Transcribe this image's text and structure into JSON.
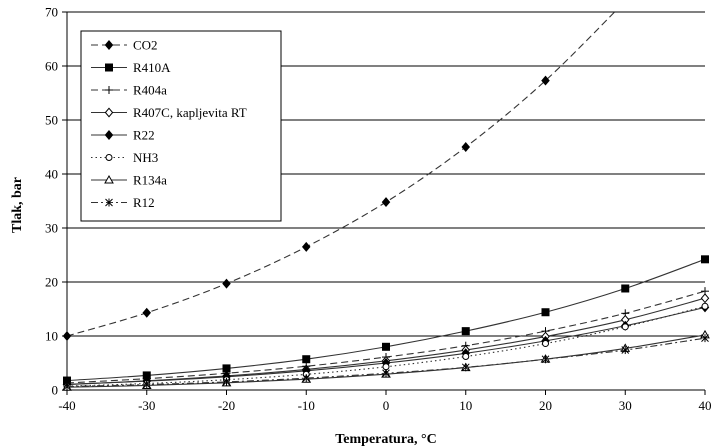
{
  "chart_data": {
    "type": "line",
    "xlabel": "Temperatura, °C",
    "ylabel": "Tlak, bar",
    "xlim": [
      -40,
      40
    ],
    "ylim": [
      0,
      70
    ],
    "x_ticks": [
      -40,
      -30,
      -20,
      -10,
      0,
      10,
      20,
      30,
      40
    ],
    "y_ticks": [
      0,
      10,
      20,
      30,
      40,
      50,
      60,
      70
    ],
    "grid": "horizontal",
    "legend_position": "top-left",
    "series": [
      {
        "name": "CO2",
        "style": "dashed",
        "marker": "diamond-filled",
        "x": [
          -40,
          -30,
          -20,
          -10,
          0,
          10,
          20,
          30
        ],
        "y": [
          10.0,
          14.3,
          19.7,
          26.5,
          34.8,
          45.0,
          57.3,
          72.0
        ]
      },
      {
        "name": "R410A",
        "style": "solid",
        "marker": "square-filled",
        "x": [
          -40,
          -30,
          -20,
          -10,
          0,
          10,
          20,
          30,
          40
        ],
        "y": [
          1.75,
          2.7,
          4.0,
          5.7,
          8.0,
          10.9,
          14.4,
          18.8,
          24.2
        ]
      },
      {
        "name": "R404a",
        "style": "dashed",
        "marker": "plus",
        "x": [
          -40,
          -30,
          -20,
          -10,
          0,
          10,
          20,
          30,
          40
        ],
        "y": [
          1.3,
          2.1,
          3.1,
          4.4,
          6.1,
          8.2,
          10.9,
          14.2,
          18.3
        ]
      },
      {
        "name": "R407C, kapljevita RT",
        "style": "solid",
        "marker": "diamond-open",
        "x": [
          -40,
          -30,
          -20,
          -10,
          0,
          10,
          20,
          30,
          40
        ],
        "y": [
          1.0,
          1.7,
          2.6,
          3.8,
          5.4,
          7.4,
          9.9,
          13.0,
          17.0
        ]
      },
      {
        "name": "R22",
        "style": "solid",
        "marker": "diamond-filled",
        "x": [
          -40,
          -30,
          -20,
          -10,
          0,
          10,
          20,
          30,
          40
        ],
        "y": [
          1.05,
          1.65,
          2.45,
          3.55,
          5.0,
          6.8,
          9.1,
          11.9,
          15.3
        ]
      },
      {
        "name": "NH3",
        "style": "dotted",
        "marker": "circle-open",
        "x": [
          -40,
          -30,
          -20,
          -10,
          0,
          10,
          20,
          30,
          40
        ],
        "y": [
          0.72,
          1.2,
          1.9,
          2.9,
          4.3,
          6.2,
          8.6,
          11.7,
          15.5
        ]
      },
      {
        "name": "R134a",
        "style": "solid",
        "marker": "triangle-open",
        "x": [
          -40,
          -30,
          -20,
          -10,
          0,
          10,
          20,
          30,
          40
        ],
        "y": [
          0.52,
          0.84,
          1.33,
          2.0,
          2.93,
          4.15,
          5.72,
          7.7,
          10.2
        ]
      },
      {
        "name": "R12",
        "style": "dashdot",
        "marker": "asterisk",
        "x": [
          -40,
          -30,
          -20,
          -10,
          0,
          10,
          20,
          30,
          40
        ],
        "y": [
          0.64,
          1.0,
          1.5,
          2.2,
          3.1,
          4.2,
          5.7,
          7.4,
          9.6
        ]
      }
    ]
  }
}
